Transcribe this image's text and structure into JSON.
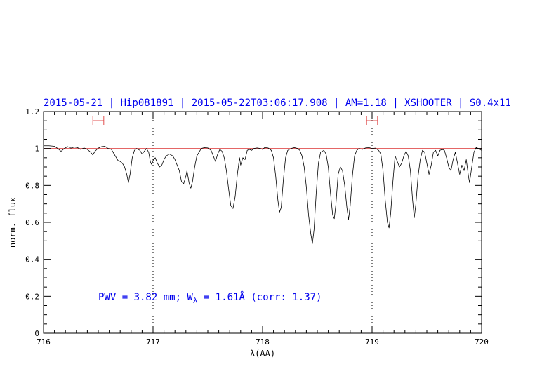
{
  "chart_data": {
    "type": "line",
    "title": "2015-05-21 | Hip081891 | 2015-05-22T03:06:17.908 | AM=1.18 | XSHOOTER | S0.4x11",
    "xlabel": "λ(AA)",
    "ylabel": "norm. flux",
    "xlim": [
      716,
      720
    ],
    "ylim": [
      0,
      1.2
    ],
    "xticks": [
      716,
      717,
      718,
      719,
      720
    ],
    "xtick_labels": [
      "716",
      "717",
      "718",
      "719",
      "720"
    ],
    "yticks": [
      0,
      0.2,
      0.4,
      0.6,
      0.8,
      1,
      1.2
    ],
    "ytick_labels": [
      "0",
      "0.2",
      "0.4",
      "0.6",
      "0.8",
      "1",
      "1.2"
    ],
    "annotation": {
      "text_prefix": "PWV = 3.82 mm; W",
      "text_subscript": "λ",
      "text_suffix": " = 1.61Å (corr: 1.37)"
    },
    "reference_line": {
      "y": 1.0,
      "color": "#e05050"
    },
    "dotted_vlines": [
      717,
      719
    ],
    "continuum_windows": [
      [
        716.45,
        716.55
      ],
      [
        718.95,
        719.05
      ]
    ],
    "colors": {
      "title": "#0000ee",
      "annotation": "#0000ee",
      "spectrum": "#000000",
      "reference": "#e05050",
      "windows": "#e05050"
    },
    "series": [
      {
        "values": [
          [
            716.0,
            1.015
          ],
          [
            716.05,
            1.015
          ],
          [
            716.1,
            1.012
          ],
          [
            716.13,
            1.0
          ],
          [
            716.16,
            0.985
          ],
          [
            716.19,
            1.0
          ],
          [
            716.22,
            1.01
          ],
          [
            716.25,
            1.002
          ],
          [
            716.28,
            1.008
          ],
          [
            716.31,
            1.005
          ],
          [
            716.34,
            0.995
          ],
          [
            716.37,
            1.003
          ],
          [
            716.4,
            0.995
          ],
          [
            716.43,
            0.98
          ],
          [
            716.45,
            0.965
          ],
          [
            716.47,
            0.985
          ],
          [
            716.5,
            1.002
          ],
          [
            716.53,
            1.01
          ],
          [
            716.56,
            1.012
          ],
          [
            716.59,
            1.0
          ],
          [
            716.62,
            0.995
          ],
          [
            716.64,
            0.975
          ],
          [
            716.66,
            0.955
          ],
          [
            716.68,
            0.935
          ],
          [
            716.7,
            0.93
          ],
          [
            716.72,
            0.92
          ],
          [
            716.74,
            0.9
          ],
          [
            716.76,
            0.86
          ],
          [
            716.775,
            0.815
          ],
          [
            716.79,
            0.86
          ],
          [
            716.81,
            0.95
          ],
          [
            716.83,
            0.99
          ],
          [
            716.85,
            1.0
          ],
          [
            716.88,
            0.99
          ],
          [
            716.9,
            0.97
          ],
          [
            716.92,
            0.985
          ],
          [
            716.94,
            1.0
          ],
          [
            716.96,
            0.98
          ],
          [
            716.975,
            0.93
          ],
          [
            716.985,
            0.915
          ],
          [
            717.0,
            0.935
          ],
          [
            717.02,
            0.95
          ],
          [
            717.04,
            0.92
          ],
          [
            717.06,
            0.9
          ],
          [
            717.08,
            0.91
          ],
          [
            717.1,
            0.94
          ],
          [
            717.12,
            0.96
          ],
          [
            717.15,
            0.97
          ],
          [
            717.18,
            0.96
          ],
          [
            717.2,
            0.94
          ],
          [
            717.22,
            0.91
          ],
          [
            717.24,
            0.88
          ],
          [
            717.26,
            0.82
          ],
          [
            717.28,
            0.81
          ],
          [
            717.3,
            0.85
          ],
          [
            717.31,
            0.88
          ],
          [
            717.33,
            0.81
          ],
          [
            717.345,
            0.785
          ],
          [
            717.36,
            0.82
          ],
          [
            717.38,
            0.9
          ],
          [
            717.4,
            0.96
          ],
          [
            717.42,
            0.98
          ],
          [
            717.44,
            1.0
          ],
          [
            717.47,
            1.005
          ],
          [
            717.5,
            1.003
          ],
          [
            717.53,
            0.99
          ],
          [
            717.55,
            0.96
          ],
          [
            717.57,
            0.93
          ],
          [
            717.59,
            0.97
          ],
          [
            717.61,
            0.995
          ],
          [
            717.63,
            0.985
          ],
          [
            717.65,
            0.95
          ],
          [
            717.67,
            0.88
          ],
          [
            717.69,
            0.78
          ],
          [
            717.71,
            0.69
          ],
          [
            717.73,
            0.675
          ],
          [
            717.75,
            0.74
          ],
          [
            717.77,
            0.86
          ],
          [
            717.79,
            0.95
          ],
          [
            717.8,
            0.91
          ],
          [
            717.82,
            0.95
          ],
          [
            717.84,
            0.94
          ],
          [
            717.86,
            0.99
          ],
          [
            717.88,
            0.995
          ],
          [
            717.9,
            0.99
          ],
          [
            717.92,
            1.0
          ],
          [
            717.95,
            1.003
          ],
          [
            717.98,
            1.0
          ],
          [
            718.0,
            0.995
          ],
          [
            718.02,
            1.005
          ],
          [
            718.05,
            1.003
          ],
          [
            718.08,
            0.99
          ],
          [
            718.1,
            0.95
          ],
          [
            718.12,
            0.85
          ],
          [
            718.14,
            0.72
          ],
          [
            718.155,
            0.655
          ],
          [
            718.17,
            0.68
          ],
          [
            718.19,
            0.83
          ],
          [
            718.21,
            0.95
          ],
          [
            718.23,
            0.99
          ],
          [
            718.26,
            1.0
          ],
          [
            718.29,
            1.005
          ],
          [
            718.32,
            1.0
          ],
          [
            718.34,
            0.99
          ],
          [
            718.36,
            0.96
          ],
          [
            718.38,
            0.9
          ],
          [
            718.4,
            0.79
          ],
          [
            718.42,
            0.64
          ],
          [
            718.44,
            0.54
          ],
          [
            718.455,
            0.485
          ],
          [
            718.47,
            0.56
          ],
          [
            718.49,
            0.76
          ],
          [
            718.51,
            0.92
          ],
          [
            718.53,
            0.98
          ],
          [
            718.56,
            0.99
          ],
          [
            718.58,
            0.97
          ],
          [
            718.6,
            0.9
          ],
          [
            718.62,
            0.76
          ],
          [
            718.64,
            0.64
          ],
          [
            718.655,
            0.62
          ],
          [
            718.67,
            0.7
          ],
          [
            718.69,
            0.86
          ],
          [
            718.71,
            0.9
          ],
          [
            718.73,
            0.88
          ],
          [
            718.75,
            0.8
          ],
          [
            718.77,
            0.68
          ],
          [
            718.785,
            0.615
          ],
          [
            718.8,
            0.69
          ],
          [
            718.82,
            0.85
          ],
          [
            718.84,
            0.96
          ],
          [
            718.86,
            0.99
          ],
          [
            718.88,
            1.0
          ],
          [
            718.91,
            0.995
          ],
          [
            718.94,
            1.003
          ],
          [
            718.97,
            1.005
          ],
          [
            719.0,
            1.0
          ],
          [
            719.03,
            1.002
          ],
          [
            719.06,
            0.99
          ],
          [
            719.08,
            0.97
          ],
          [
            719.1,
            0.88
          ],
          [
            719.12,
            0.72
          ],
          [
            719.14,
            0.6
          ],
          [
            719.155,
            0.57
          ],
          [
            719.17,
            0.65
          ],
          [
            719.19,
            0.82
          ],
          [
            719.21,
            0.96
          ],
          [
            719.23,
            0.93
          ],
          [
            719.25,
            0.9
          ],
          [
            719.27,
            0.92
          ],
          [
            719.29,
            0.96
          ],
          [
            719.31,
            0.985
          ],
          [
            719.33,
            0.96
          ],
          [
            719.35,
            0.88
          ],
          [
            719.37,
            0.72
          ],
          [
            719.385,
            0.625
          ],
          [
            719.4,
            0.7
          ],
          [
            719.42,
            0.85
          ],
          [
            719.44,
            0.94
          ],
          [
            719.46,
            0.99
          ],
          [
            719.48,
            0.98
          ],
          [
            719.5,
            0.92
          ],
          [
            719.52,
            0.86
          ],
          [
            719.54,
            0.91
          ],
          [
            719.56,
            0.98
          ],
          [
            719.58,
            0.99
          ],
          [
            719.6,
            0.96
          ],
          [
            719.62,
            0.99
          ],
          [
            719.64,
            0.995
          ],
          [
            719.66,
            0.99
          ],
          [
            719.68,
            0.95
          ],
          [
            719.7,
            0.9
          ],
          [
            719.72,
            0.88
          ],
          [
            719.74,
            0.94
          ],
          [
            719.76,
            0.98
          ],
          [
            719.78,
            0.92
          ],
          [
            719.8,
            0.86
          ],
          [
            719.82,
            0.91
          ],
          [
            719.84,
            0.88
          ],
          [
            719.86,
            0.94
          ],
          [
            719.88,
            0.85
          ],
          [
            719.89,
            0.815
          ],
          [
            719.91,
            0.9
          ],
          [
            719.93,
            0.98
          ],
          [
            719.95,
            1.005
          ],
          [
            719.97,
            1.0
          ],
          [
            720.0,
            0.99
          ]
        ]
      }
    ]
  }
}
